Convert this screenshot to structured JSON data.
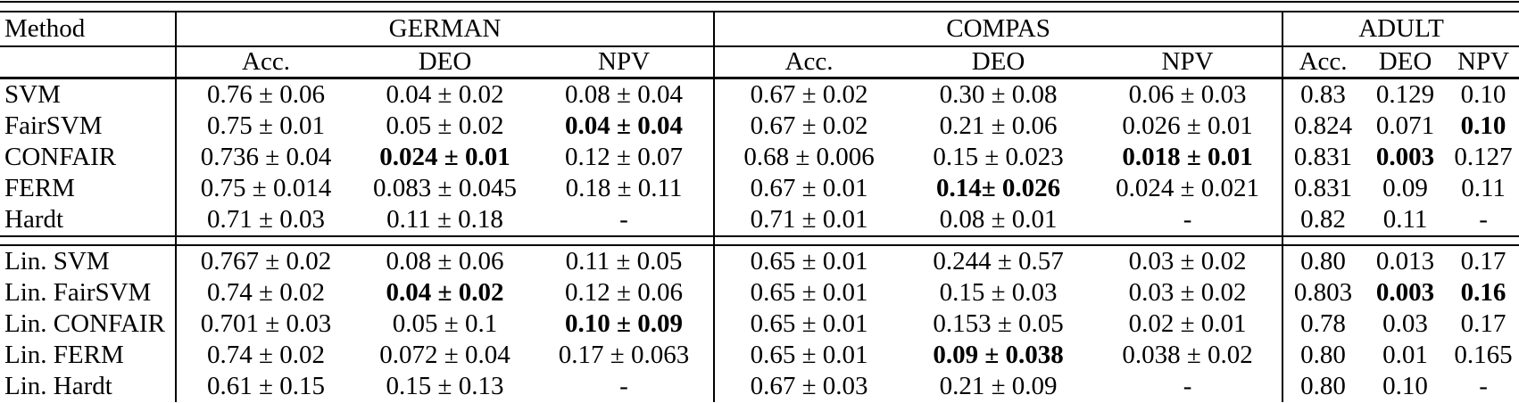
{
  "table": {
    "method_header": "Method",
    "groups": [
      {
        "label": "GERMAN",
        "columns": [
          "Acc.",
          "DEO",
          "NPV"
        ]
      },
      {
        "label": "COMPAS",
        "columns": [
          "Acc.",
          "DEO",
          "NPV"
        ]
      },
      {
        "label": "ADULT",
        "columns": [
          "Acc.",
          "DEO",
          "NPV"
        ]
      }
    ],
    "sections": [
      {
        "rows": [
          {
            "method": "SVM",
            "cells": [
              {
                "t": "0.76 ± 0.06"
              },
              {
                "t": "0.04 ± 0.02"
              },
              {
                "t": "0.08 ± 0.04"
              },
              {
                "t": "0.67 ± 0.02"
              },
              {
                "t": "0.30 ± 0.08"
              },
              {
                "t": "0.06 ± 0.03"
              },
              {
                "t": "0.83"
              },
              {
                "t": "0.129"
              },
              {
                "t": "0.10"
              }
            ]
          },
          {
            "method": "FairSVM",
            "cells": [
              {
                "t": "0.75 ± 0.01"
              },
              {
                "t": "0.05 ± 0.02"
              },
              {
                "t": "0.04 ± 0.04",
                "b": true
              },
              {
                "t": "0.67 ± 0.02"
              },
              {
                "t": "0.21 ± 0.06"
              },
              {
                "t": "0.026 ± 0.01"
              },
              {
                "t": "0.824"
              },
              {
                "t": "0.071"
              },
              {
                "t": "0.10",
                "b": true
              }
            ]
          },
          {
            "method": "CONFAIR",
            "cells": [
              {
                "t": "0.736 ± 0.04"
              },
              {
                "t": "0.024 ± 0.01",
                "b": true
              },
              {
                "t": "0.12 ± 0.07"
              },
              {
                "t": "0.68 ± 0.006"
              },
              {
                "t": "0.15 ± 0.023"
              },
              {
                "t": "0.018 ± 0.01",
                "b": true
              },
              {
                "t": "0.831"
              },
              {
                "t": "0.003",
                "b": true
              },
              {
                "t": "0.127"
              }
            ]
          },
          {
            "method": "FERM",
            "cells": [
              {
                "t": "0.75 ± 0.014"
              },
              {
                "t": "0.083 ± 0.045"
              },
              {
                "t": "0.18 ± 0.11"
              },
              {
                "t": "0.67 ± 0.01"
              },
              {
                "t": "0.14± 0.026",
                "b": true
              },
              {
                "t": "0.024 ± 0.021"
              },
              {
                "t": "0.831"
              },
              {
                "t": "0.09"
              },
              {
                "t": "0.11"
              }
            ]
          },
          {
            "method": "Hardt",
            "cells": [
              {
                "t": "0.71 ± 0.03"
              },
              {
                "t": "0.11 ± 0.18"
              },
              {
                "t": "-"
              },
              {
                "t": "0.71 ± 0.01"
              },
              {
                "t": "0.08 ± 0.01"
              },
              {
                "t": "-"
              },
              {
                "t": "0.82"
              },
              {
                "t": "0.11"
              },
              {
                "t": "-"
              }
            ]
          }
        ]
      },
      {
        "rows": [
          {
            "method": "Lin. SVM",
            "cells": [
              {
                "t": "0.767 ± 0.02"
              },
              {
                "t": "0.08 ± 0.06"
              },
              {
                "t": "0.11 ± 0.05"
              },
              {
                "t": "0.65 ± 0.01"
              },
              {
                "t": "0.244 ± 0.57"
              },
              {
                "t": "0.03 ± 0.02"
              },
              {
                "t": "0.80"
              },
              {
                "t": "0.013"
              },
              {
                "t": "0.17"
              }
            ]
          },
          {
            "method": "Lin. FairSVM",
            "cells": [
              {
                "t": "0.74 ± 0.02"
              },
              {
                "t": "0.04 ± 0.02",
                "b": true
              },
              {
                "t": "0.12 ± 0.06"
              },
              {
                "t": "0.65 ± 0.01"
              },
              {
                "t": "0.15 ± 0.03"
              },
              {
                "t": "0.03 ± 0.02"
              },
              {
                "t": "0.803"
              },
              {
                "t": "0.003",
                "b": true
              },
              {
                "t": "0.16",
                "b": true
              }
            ]
          },
          {
            "method": "Lin. CONFAIR",
            "cells": [
              {
                "t": "0.701 ± 0.03"
              },
              {
                "t": "0.05 ± 0.1"
              },
              {
                "t": "0.10 ± 0.09",
                "b": true
              },
              {
                "t": "0.65 ± 0.01"
              },
              {
                "t": "0.153 ± 0.05"
              },
              {
                "t": "0.02 ± 0.01"
              },
              {
                "t": "0.78"
              },
              {
                "t": "0.03"
              },
              {
                "t": "0.17"
              }
            ]
          },
          {
            "method": "Lin. FERM",
            "cells": [
              {
                "t": "0.74 ± 0.02"
              },
              {
                "t": "0.072 ± 0.04"
              },
              {
                "t": "0.17 ± 0.063"
              },
              {
                "t": "0.65 ± 0.01"
              },
              {
                "t": "0.09 ± 0.038",
                "b": true
              },
              {
                "t": "0.038 ± 0.02"
              },
              {
                "t": "0.80"
              },
              {
                "t": "0.01"
              },
              {
                "t": "0.165"
              }
            ]
          },
          {
            "method": "Lin. Hardt",
            "cells": [
              {
                "t": "0.61 ± 0.15"
              },
              {
                "t": "0.15 ± 0.13"
              },
              {
                "t": "-"
              },
              {
                "t": "0.67 ± 0.03"
              },
              {
                "t": "0.21 ± 0.09"
              },
              {
                "t": "-"
              },
              {
                "t": "0.80"
              },
              {
                "t": "0.10"
              },
              {
                "t": "-"
              }
            ]
          }
        ]
      }
    ]
  }
}
